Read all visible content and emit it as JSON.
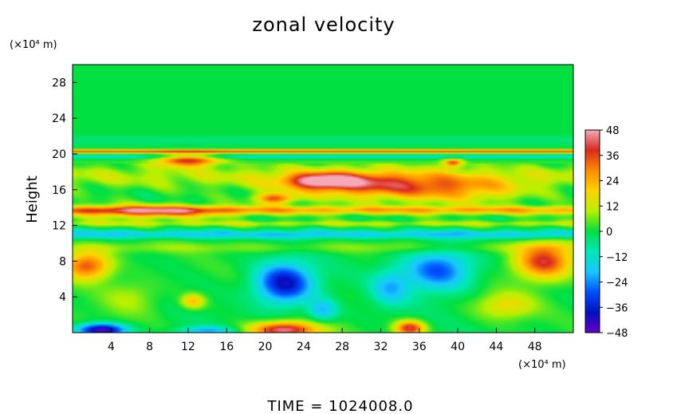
{
  "chart_data": {
    "type": "heatmap",
    "title": "zonal velocity",
    "ylabel": "Height",
    "x_unit": "(×10⁴ m)",
    "y_unit": "(×10⁴ m)",
    "xlim": [
      0,
      52
    ],
    "ylim": [
      0,
      30
    ],
    "x_ticks": [
      "4",
      "8",
      "12",
      "16",
      "20",
      "24",
      "28",
      "32",
      "36",
      "40",
      "44",
      "48"
    ],
    "y_ticks": [
      "4",
      "8",
      "12",
      "16",
      "20",
      "24",
      "28"
    ],
    "colorbar": {
      "range": [
        -48,
        48
      ],
      "ticks": [
        "48",
        "36",
        "24",
        "12",
        "0",
        "−12",
        "−24",
        "−36",
        "−48"
      ],
      "colors": [
        "#f5a8b8",
        "#d92a1f",
        "#ff8c00",
        "#ffd400",
        "#b8f000",
        "#00e040",
        "#00e8b8",
        "#18c8ff",
        "#0050ff",
        "#0010c0",
        "#6800c8"
      ]
    },
    "features": [
      {
        "x": 12,
        "y": 19.3,
        "sx": 3.2,
        "sy": 0.7,
        "v": 38
      },
      {
        "x": 30,
        "y": 16.5,
        "sx": 8,
        "sy": 1.5,
        "v": 30
      },
      {
        "x": 8,
        "y": 13.5,
        "sx": 8,
        "sy": 0.8,
        "v": 26
      },
      {
        "x": 40,
        "y": 16,
        "sx": 7,
        "sy": 1.5,
        "v": 22
      },
      {
        "x": 26,
        "y": 17,
        "sx": 3.5,
        "sy": 0.8,
        "v": 34
      },
      {
        "x": 21,
        "y": 15,
        "sx": 2,
        "sy": 0.6,
        "v": 32
      },
      {
        "x": 39.5,
        "y": 19,
        "sx": 1,
        "sy": 0.5,
        "v": 32
      },
      {
        "x": 22,
        "y": 5.5,
        "sx": 3,
        "sy": 2.3,
        "v": -40
      },
      {
        "x": 38,
        "y": 7,
        "sx": 3.5,
        "sy": 2.3,
        "v": -30
      },
      {
        "x": 33,
        "y": 5,
        "sx": 2,
        "sy": 2,
        "v": -18
      },
      {
        "x": 1.5,
        "y": 7.5,
        "sx": 2.5,
        "sy": 1.6,
        "v": 36
      },
      {
        "x": 49,
        "y": 8,
        "sx": 3,
        "sy": 2,
        "v": 40
      },
      {
        "x": 22,
        "y": 0.3,
        "sx": 3.5,
        "sy": 0.9,
        "v": 46
      },
      {
        "x": 35,
        "y": 0.5,
        "sx": 1.5,
        "sy": 0.8,
        "v": 40
      },
      {
        "x": 3,
        "y": 0.3,
        "sx": 2.5,
        "sy": 0.7,
        "v": -48
      },
      {
        "x": 12.5,
        "y": 3.5,
        "sx": 1.2,
        "sy": 0.8,
        "v": 22
      },
      {
        "x": 26,
        "y": 2.5,
        "sx": 1.5,
        "sy": 1.2,
        "v": -20
      },
      {
        "x": 14,
        "y": 0.2,
        "sx": 3,
        "sy": 0.5,
        "v": -20
      },
      {
        "x": 45,
        "y": 3,
        "sx": 3,
        "sy": 1.5,
        "v": 16
      },
      {
        "x": 6,
        "y": 4,
        "sx": 3,
        "sy": 2,
        "v": 10
      }
    ],
    "bands": [
      {
        "y": 20.3,
        "sy": 0.2,
        "v": 34
      },
      {
        "y": 19.7,
        "sy": 0.25,
        "v": -12
      },
      {
        "y": 13.7,
        "sy": 0.45,
        "v": 24
      },
      {
        "y": 11,
        "sy": 0.45,
        "v": -18
      },
      {
        "y": 12.2,
        "sy": 0.3,
        "v": 10
      },
      {
        "y": 9.5,
        "sy": 0.6,
        "v": 6
      },
      {
        "y": 21.5,
        "sy": 0.6,
        "v": -4
      },
      {
        "y": 17.5,
        "sy": 1.3,
        "v": 10
      }
    ]
  },
  "footer": {
    "time_label": "TIME  =  1024008.0"
  }
}
